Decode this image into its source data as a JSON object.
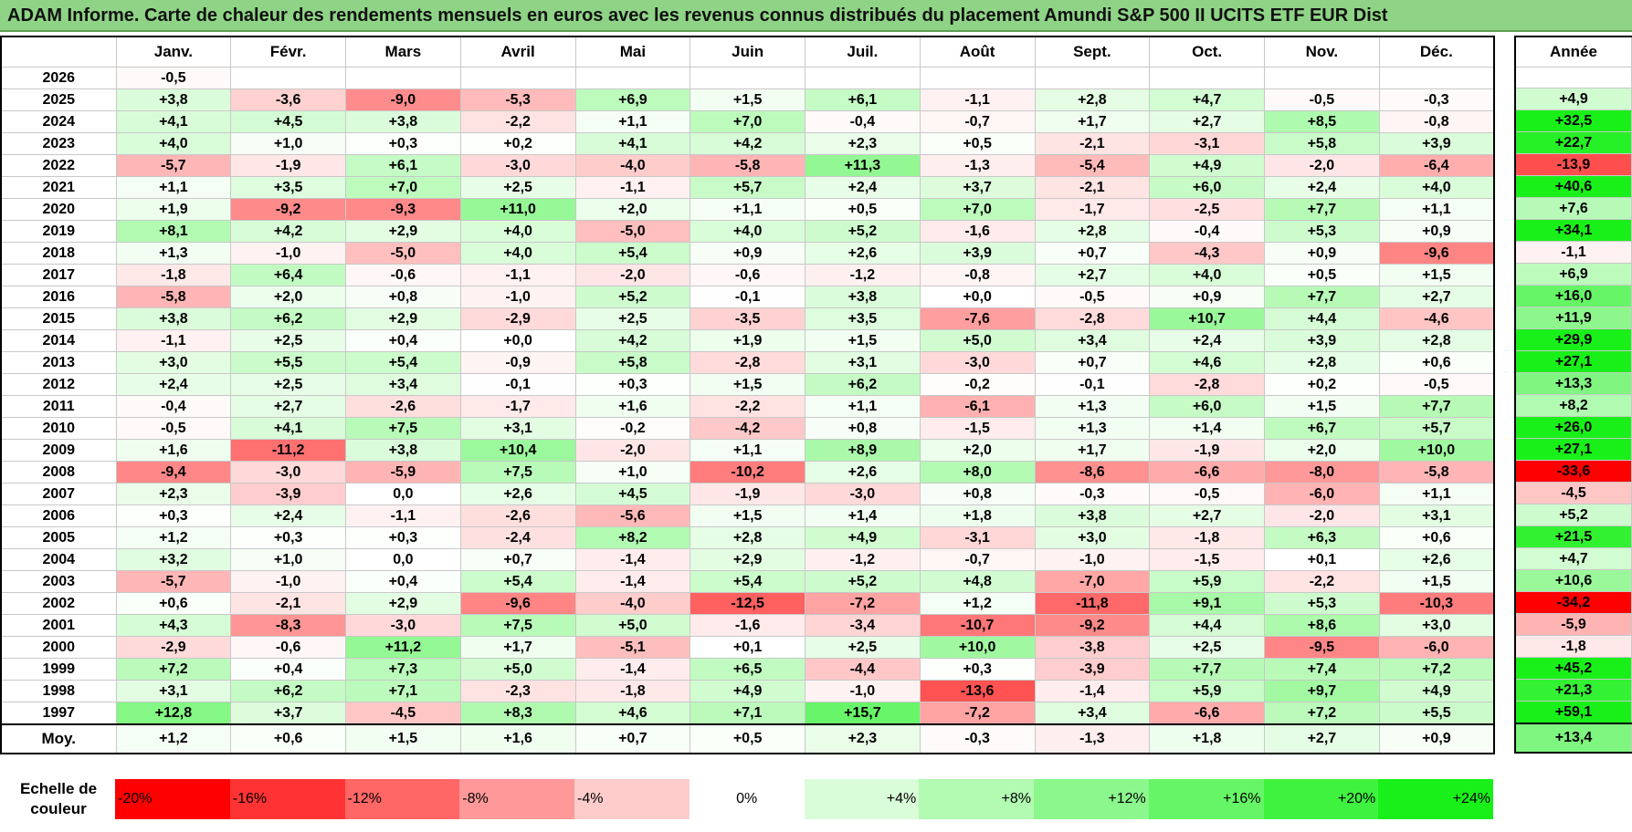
{
  "title": "ADAM Informe. Carte de chaleur des rendements mensuels en euros avec les revenus connus distribués du placement Amundi S&P 500 II UCITS ETF EUR Dist",
  "chart_data": {
    "type": "heatmap",
    "title": "ADAM Informe. Carte de chaleur des rendements mensuels en euros avec les revenus connus distribués du placement Amundi S&P 500 II UCITS ETF EUR Dist",
    "columns": [
      "Janv.",
      "Févr.",
      "Mars",
      "Avril",
      "Mai",
      "Juin",
      "Juil.",
      "Août",
      "Sept.",
      "Oct.",
      "Nov.",
      "Déc."
    ],
    "annual_header": "Année",
    "rows": [
      {
        "year": "2026",
        "values": [
          "-0,5",
          "",
          "",
          "",
          "",
          "",
          "",
          "",
          "",
          "",
          "",
          ""
        ],
        "annual": ""
      },
      {
        "year": "2025",
        "values": [
          "+3,8",
          "-3,6",
          "-9,0",
          "-5,3",
          "+6,9",
          "+1,5",
          "+6,1",
          "-1,1",
          "+2,8",
          "+4,7",
          "-0,5",
          "-0,3"
        ],
        "annual": "+4,9"
      },
      {
        "year": "2024",
        "values": [
          "+4,1",
          "+4,5",
          "+3,8",
          "-2,2",
          "+1,1",
          "+7,0",
          "-0,4",
          "-0,7",
          "+1,7",
          "+2,7",
          "+8,5",
          "-0,8"
        ],
        "annual": "+32,5"
      },
      {
        "year": "2023",
        "values": [
          "+4,0",
          "+1,0",
          "+0,3",
          "+0,2",
          "+4,1",
          "+4,2",
          "+2,3",
          "+0,5",
          "-2,1",
          "-3,1",
          "+5,8",
          "+3,9"
        ],
        "annual": "+22,7"
      },
      {
        "year": "2022",
        "values": [
          "-5,7",
          "-1,9",
          "+6,1",
          "-3,0",
          "-4,0",
          "-5,8",
          "+11,3",
          "-1,3",
          "-5,4",
          "+4,9",
          "-2,0",
          "-6,4"
        ],
        "annual": "-13,9"
      },
      {
        "year": "2021",
        "values": [
          "+1,1",
          "+3,5",
          "+7,0",
          "+2,5",
          "-1,1",
          "+5,7",
          "+2,4",
          "+3,7",
          "-2,1",
          "+6,0",
          "+2,4",
          "+4,0"
        ],
        "annual": "+40,6"
      },
      {
        "year": "2020",
        "values": [
          "+1,9",
          "-9,2",
          "-9,3",
          "+11,0",
          "+2,0",
          "+1,1",
          "+0,5",
          "+7,0",
          "-1,7",
          "-2,5",
          "+7,7",
          "+1,1"
        ],
        "annual": "+7,6"
      },
      {
        "year": "2019",
        "values": [
          "+8,1",
          "+4,2",
          "+2,9",
          "+4,0",
          "-5,0",
          "+4,0",
          "+5,2",
          "-1,6",
          "+2,8",
          "-0,4",
          "+5,3",
          "+0,9"
        ],
        "annual": "+34,1"
      },
      {
        "year": "2018",
        "values": [
          "+1,3",
          "-1,0",
          "-5,0",
          "+4,0",
          "+5,4",
          "+0,9",
          "+2,6",
          "+3,9",
          "+0,7",
          "-4,3",
          "+0,9",
          "-9,6"
        ],
        "annual": "-1,1"
      },
      {
        "year": "2017",
        "values": [
          "-1,8",
          "+6,4",
          "-0,6",
          "-1,1",
          "-2,0",
          "-0,6",
          "-1,2",
          "-0,8",
          "+2,7",
          "+4,0",
          "+0,5",
          "+1,5"
        ],
        "annual": "+6,9"
      },
      {
        "year": "2016",
        "values": [
          "-5,8",
          "+2,0",
          "+0,8",
          "-1,0",
          "+5,2",
          "-0,1",
          "+3,8",
          "+0,0",
          "-0,5",
          "+0,9",
          "+7,7",
          "+2,7"
        ],
        "annual": "+16,0"
      },
      {
        "year": "2015",
        "values": [
          "+3,8",
          "+6,2",
          "+2,9",
          "-2,9",
          "+2,5",
          "-3,5",
          "+3,5",
          "-7,6",
          "-2,8",
          "+10,7",
          "+4,4",
          "-4,6"
        ],
        "annual": "+11,9"
      },
      {
        "year": "2014",
        "values": [
          "-1,1",
          "+2,5",
          "+0,4",
          "+0,0",
          "+4,2",
          "+1,9",
          "+1,5",
          "+5,0",
          "+3,4",
          "+2,4",
          "+3,9",
          "+2,8"
        ],
        "annual": "+29,9"
      },
      {
        "year": "2013",
        "values": [
          "+3,0",
          "+5,5",
          "+5,4",
          "-0,9",
          "+5,8",
          "-2,8",
          "+3,1",
          "-3,0",
          "+0,7",
          "+4,6",
          "+2,8",
          "+0,6"
        ],
        "annual": "+27,1"
      },
      {
        "year": "2012",
        "values": [
          "+2,4",
          "+2,5",
          "+3,4",
          "-0,1",
          "+0,3",
          "+1,5",
          "+6,2",
          "-0,2",
          "-0,1",
          "-2,8",
          "+0,2",
          "-0,5"
        ],
        "annual": "+13,3"
      },
      {
        "year": "2011",
        "values": [
          "-0,4",
          "+2,7",
          "-2,6",
          "-1,7",
          "+1,6",
          "-2,2",
          "+1,1",
          "-6,1",
          "+1,3",
          "+6,0",
          "+1,5",
          "+7,7"
        ],
        "annual": "+8,2"
      },
      {
        "year": "2010",
        "values": [
          "-0,5",
          "+4,1",
          "+7,5",
          "+3,1",
          "-0,2",
          "-4,2",
          "+0,8",
          "-1,5",
          "+1,3",
          "+1,4",
          "+6,7",
          "+5,7"
        ],
        "annual": "+26,0"
      },
      {
        "year": "2009",
        "values": [
          "+1,6",
          "-11,2",
          "+3,8",
          "+10,4",
          "-2,0",
          "+1,1",
          "+8,9",
          "+2,0",
          "+1,7",
          "-1,9",
          "+2,0",
          "+10,0"
        ],
        "annual": "+27,1"
      },
      {
        "year": "2008",
        "values": [
          "-9,4",
          "-3,0",
          "-5,9",
          "+7,5",
          "+1,0",
          "-10,2",
          "+2,6",
          "+8,0",
          "-8,6",
          "-6,6",
          "-8,0",
          "-5,8"
        ],
        "annual": "-33,6"
      },
      {
        "year": "2007",
        "values": [
          "+2,3",
          "-3,9",
          "0,0",
          "+2,6",
          "+4,5",
          "-1,9",
          "-3,0",
          "+0,8",
          "-0,3",
          "-0,5",
          "-6,0",
          "+1,1"
        ],
        "annual": "-4,5"
      },
      {
        "year": "2006",
        "values": [
          "+0,3",
          "+2,4",
          "-1,1",
          "-2,6",
          "-5,6",
          "+1,5",
          "+1,4",
          "+1,8",
          "+3,8",
          "+2,7",
          "-2,0",
          "+3,1"
        ],
        "annual": "+5,2"
      },
      {
        "year": "2005",
        "values": [
          "+1,2",
          "+0,3",
          "+0,3",
          "-2,4",
          "+8,2",
          "+2,8",
          "+4,9",
          "-3,1",
          "+3,0",
          "-1,8",
          "+6,3",
          "+0,6"
        ],
        "annual": "+21,5"
      },
      {
        "year": "2004",
        "values": [
          "+3,2",
          "+1,0",
          "0,0",
          "+0,7",
          "-1,4",
          "+2,9",
          "-1,2",
          "-0,7",
          "-1,0",
          "-1,5",
          "+0,1",
          "+2,6"
        ],
        "annual": "+4,7"
      },
      {
        "year": "2003",
        "values": [
          "-5,7",
          "-1,0",
          "+0,4",
          "+5,4",
          "-1,4",
          "+5,4",
          "+5,2",
          "+4,8",
          "-7,0",
          "+5,9",
          "-2,2",
          "+1,5"
        ],
        "annual": "+10,6"
      },
      {
        "year": "2002",
        "values": [
          "+0,6",
          "-2,1",
          "+2,9",
          "-9,6",
          "-4,0",
          "-12,5",
          "-7,2",
          "+1,2",
          "-11,8",
          "+9,1",
          "+5,3",
          "-10,3"
        ],
        "annual": "-34,2"
      },
      {
        "year": "2001",
        "values": [
          "+4,3",
          "-8,3",
          "-3,0",
          "+7,5",
          "+5,0",
          "-1,6",
          "-3,4",
          "-10,7",
          "-9,2",
          "+4,4",
          "+8,6",
          "+3,0"
        ],
        "annual": "-5,9"
      },
      {
        "year": "2000",
        "values": [
          "-2,9",
          "-0,6",
          "+11,2",
          "+1,7",
          "-5,1",
          "+0,1",
          "+2,5",
          "+10,0",
          "-3,8",
          "+2,5",
          "-9,5",
          "-6,0"
        ],
        "annual": "-1,8"
      },
      {
        "year": "1999",
        "values": [
          "+7,2",
          "+0,4",
          "+7,3",
          "+5,0",
          "-1,4",
          "+6,5",
          "-4,4",
          "+0,3",
          "-3,9",
          "+7,7",
          "+7,4",
          "+7,2"
        ],
        "annual": "+45,2"
      },
      {
        "year": "1998",
        "values": [
          "+3,1",
          "+6,2",
          "+7,1",
          "-2,3",
          "-1,8",
          "+4,9",
          "-1,0",
          "-13,6",
          "-1,4",
          "+5,9",
          "+9,7",
          "+4,9"
        ],
        "annual": "+21,3"
      },
      {
        "year": "1997",
        "values": [
          "+12,8",
          "+3,7",
          "-4,5",
          "+8,3",
          "+4,6",
          "+7,1",
          "+15,7",
          "-7,2",
          "+3,4",
          "-6,6",
          "+7,2",
          "+5,5"
        ],
        "annual": "+59,1"
      }
    ],
    "average": {
      "label": "Moy.",
      "values": [
        "+1,2",
        "+0,6",
        "+1,5",
        "+1,6",
        "+0,7",
        "+0,5",
        "+2,3",
        "-0,3",
        "-1,3",
        "+1,8",
        "+2,7",
        "+0,9"
      ],
      "annual": "+13,4"
    },
    "color_scale": {
      "label": "Echelle de couleur",
      "stops": [
        {
          "label": "-20%",
          "value": -20,
          "color": "#ff0000"
        },
        {
          "label": "-16%",
          "value": -16,
          "color": "#ff3333"
        },
        {
          "label": "-12%",
          "value": -12,
          "color": "#ff6666"
        },
        {
          "label": "-8%",
          "value": -8,
          "color": "#ff9999"
        },
        {
          "label": "-4%",
          "value": -4,
          "color": "#ffcccc"
        },
        {
          "label": "0%",
          "value": 0,
          "color": "#ffffff"
        },
        {
          "label": "+4%",
          "value": 4,
          "color": "#d9fcd9"
        },
        {
          "label": "+8%",
          "value": 8,
          "color": "#b3fab3"
        },
        {
          "label": "+12%",
          "value": 12,
          "color": "#8cf78c"
        },
        {
          "label": "+16%",
          "value": 16,
          "color": "#66f566"
        },
        {
          "label": "+20%",
          "value": 20,
          "color": "#40f240"
        },
        {
          "label": "+24%",
          "value": 24,
          "color": "#19f019"
        }
      ]
    }
  }
}
